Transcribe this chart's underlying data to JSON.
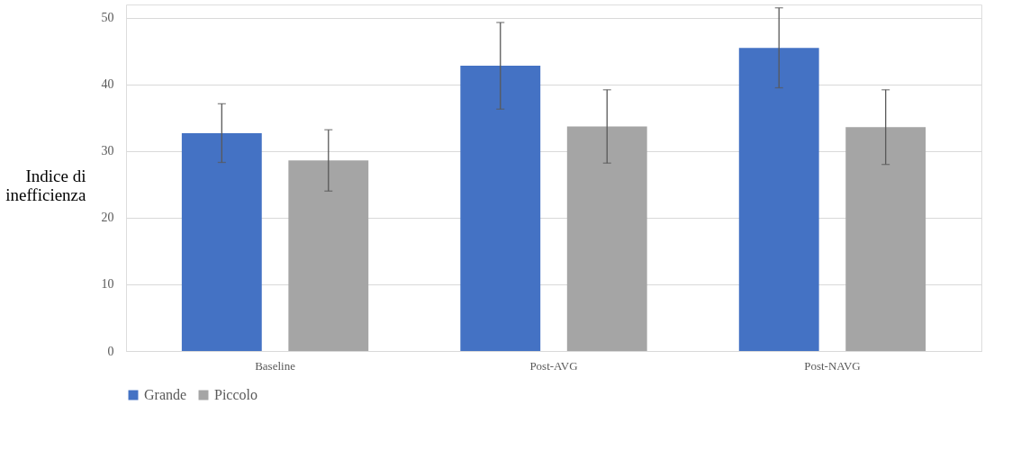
{
  "chart_data": {
    "type": "bar",
    "ylabel": "Indice di inefficienza",
    "categories": [
      "Baseline",
      "Post-AVG",
      "Post-NAVG"
    ],
    "series": [
      {
        "name": "Grande",
        "color": "#4472c4",
        "values": [
          32.7,
          42.8,
          45.5
        ],
        "errors": [
          4.4,
          6.5,
          6.0
        ]
      },
      {
        "name": "Piccolo",
        "color": "#a5a5a5",
        "values": [
          28.6,
          33.7,
          33.6
        ],
        "errors": [
          4.6,
          5.5,
          5.6
        ]
      }
    ],
    "ylim": [
      0,
      52
    ],
    "yticks": [
      0,
      10,
      20,
      30,
      40,
      50
    ],
    "grid": "y",
    "legend": "bottom"
  }
}
